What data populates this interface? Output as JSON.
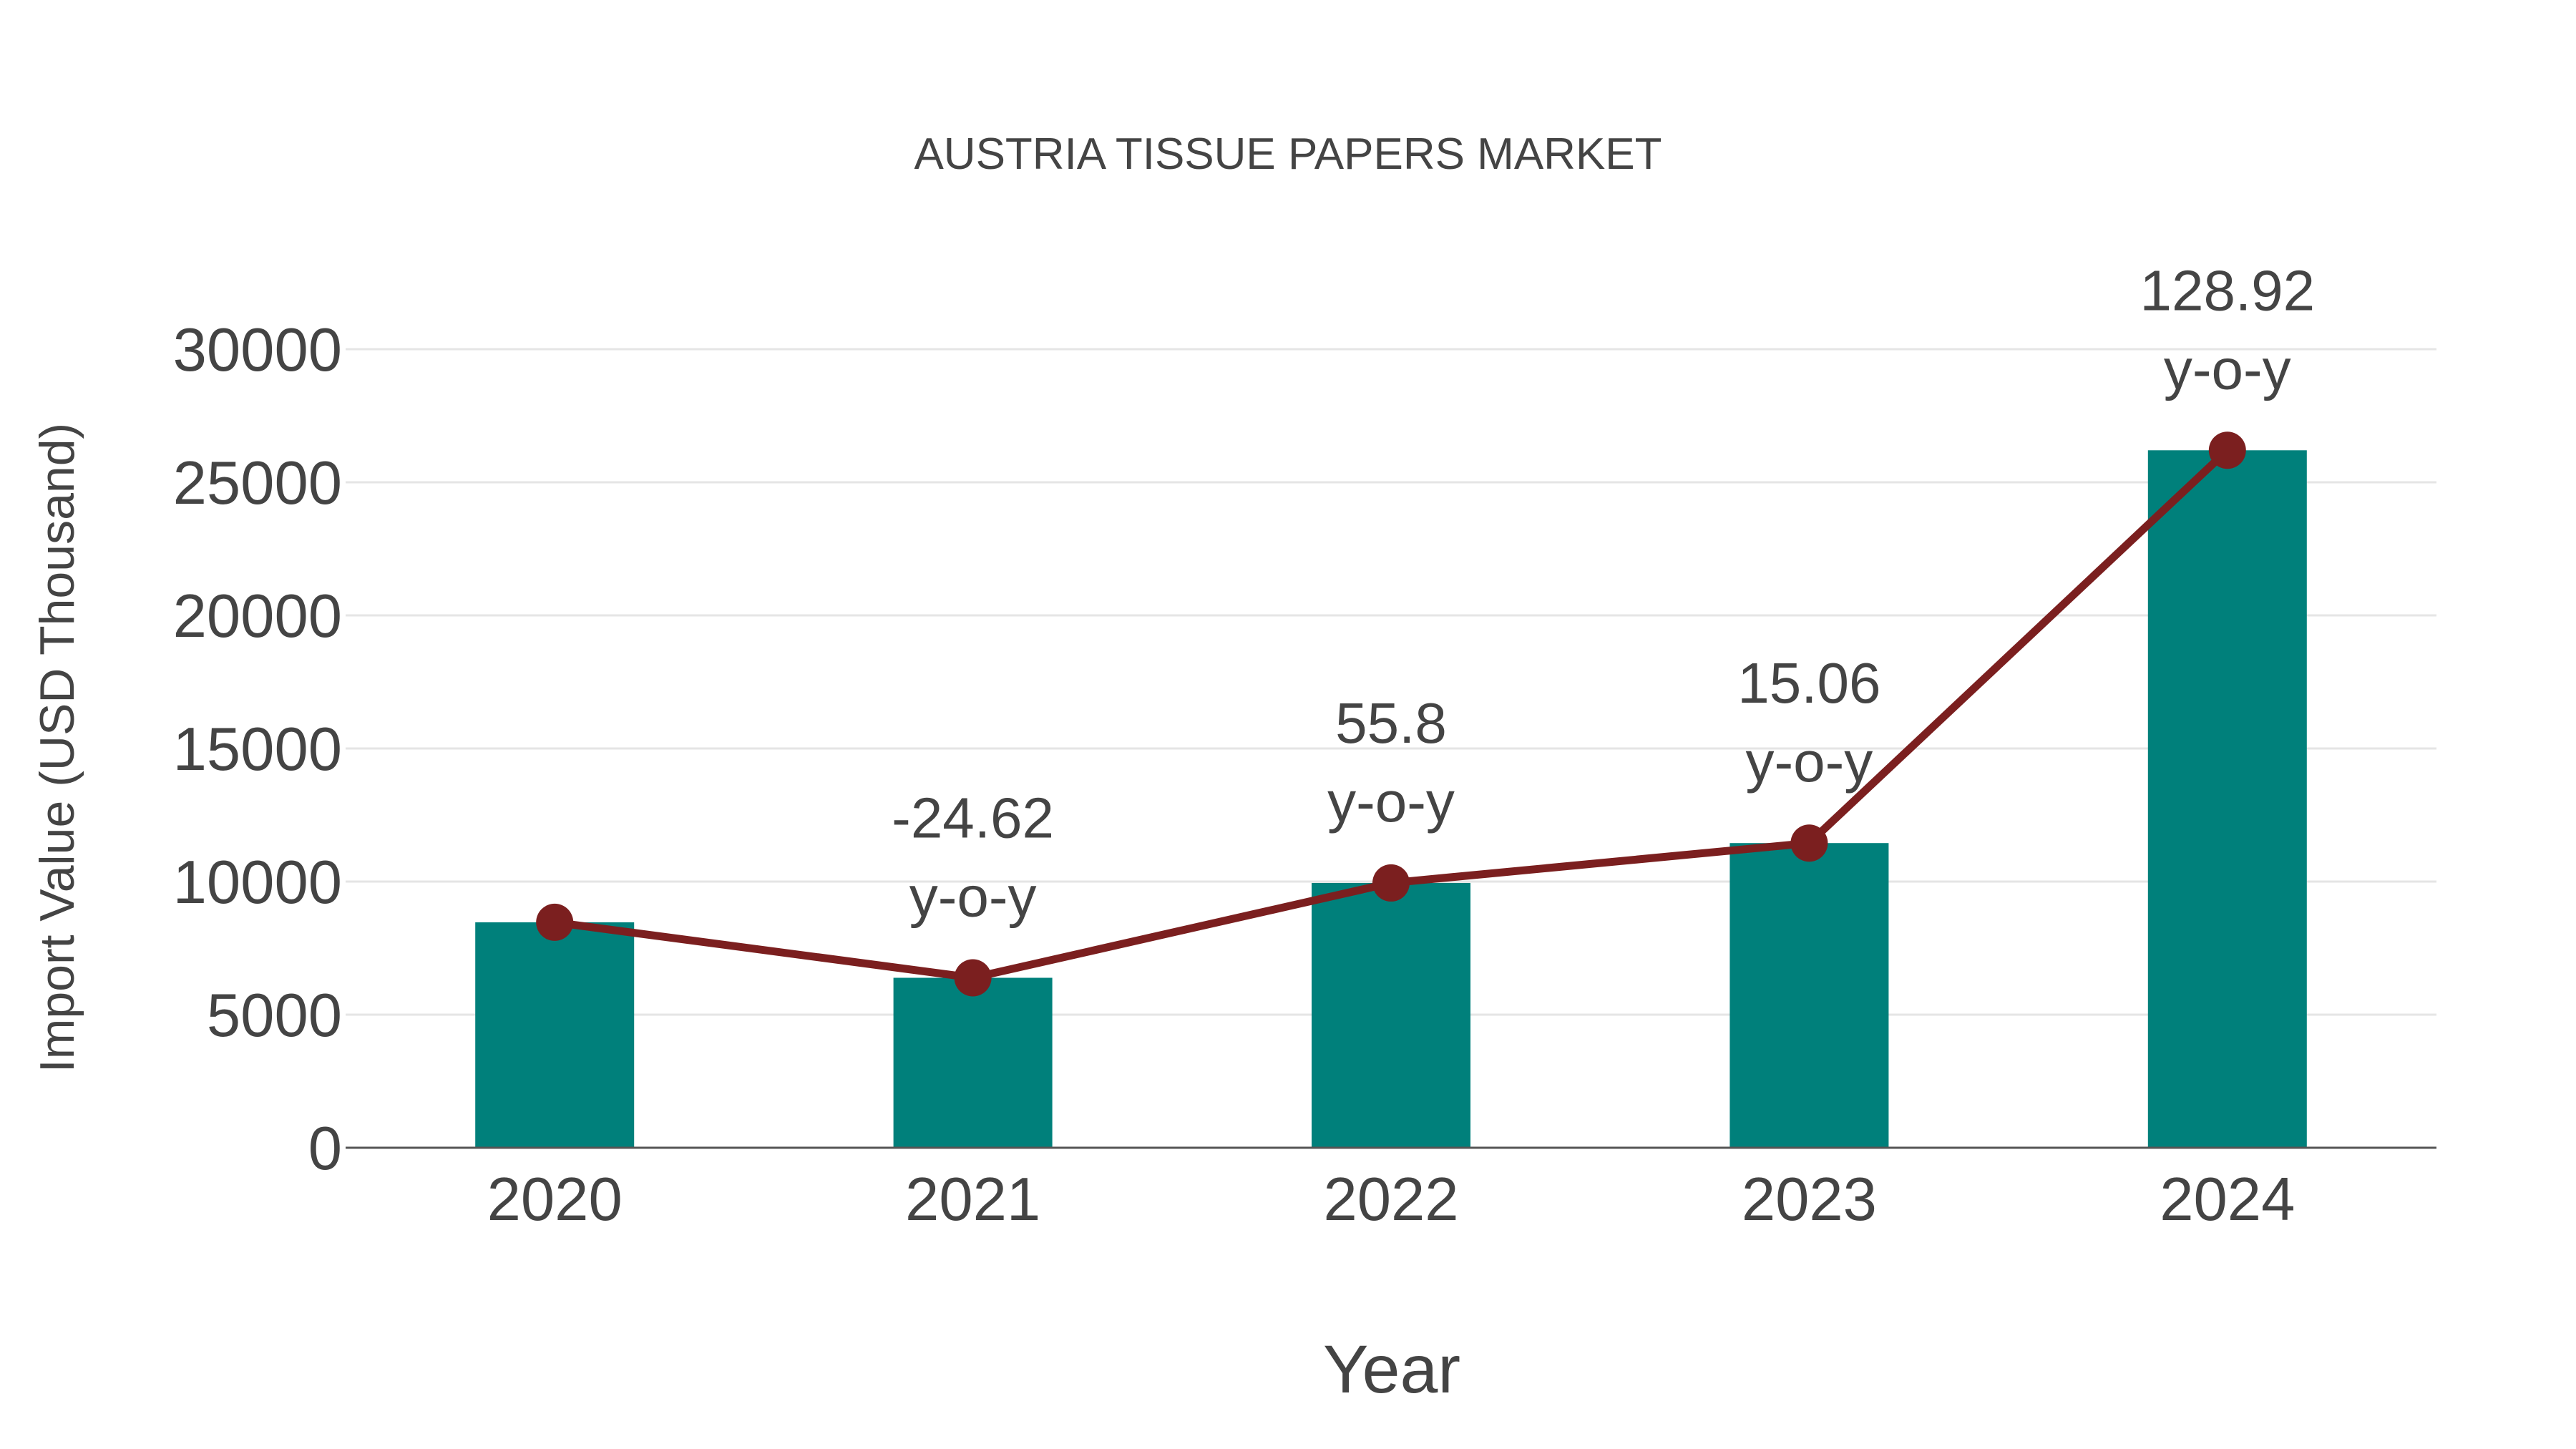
{
  "chart_data": {
    "type": "bar",
    "title": "AUSTRIA TISSUE PAPERS MARKET",
    "xlabel": "Year",
    "ylabel": "Import Value (USD Thousand)",
    "categories": [
      "2020",
      "2021",
      "2022",
      "2023",
      "2024"
    ],
    "series": [
      {
        "name": "Import Value",
        "type": "bar",
        "color": "#00807B",
        "values": [
          8470,
          6385,
          9948,
          11446,
          26202
        ]
      },
      {
        "name": "Import Value trend",
        "type": "line",
        "color": "#7B1F1F",
        "values": [
          8470,
          6385,
          9948,
          11446,
          26202
        ]
      }
    ],
    "annotations": [
      {
        "category": "2021",
        "value": "-24.62",
        "suffix": "y-o-y"
      },
      {
        "category": "2022",
        "value": "55.8",
        "suffix": "y-o-y"
      },
      {
        "category": "2023",
        "value": "15.06",
        "suffix": "y-o-y"
      },
      {
        "category": "2024",
        "value": "128.92",
        "suffix": "y-o-y"
      }
    ],
    "yticks": [
      0,
      5000,
      10000,
      15000,
      20000,
      25000,
      30000
    ],
    "ylim": [
      0,
      30000
    ],
    "grid": true,
    "legend": false
  },
  "colors": {
    "bar": "#00807B",
    "line": "#7B1F1F",
    "text": "#444444",
    "grid": "#E5E5E5",
    "axis": "#555555"
  }
}
